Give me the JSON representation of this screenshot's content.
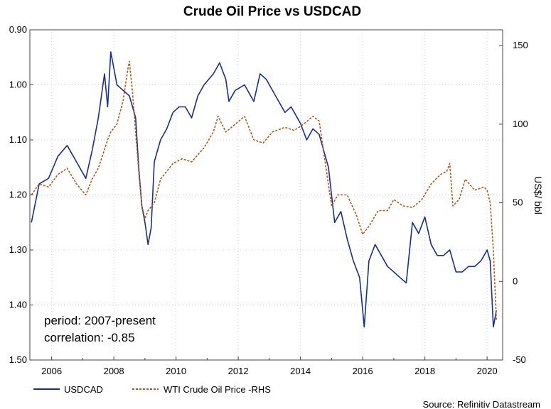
{
  "chart_data": {
    "type": "line",
    "title": "Crude Oil Price vs USDCAD",
    "x_ticks": [
      "2006",
      "2008",
      "2010",
      "2012",
      "2014",
      "2016",
      "2018",
      "2020"
    ],
    "x_range": [
      2005.3,
      2020.5
    ],
    "left_axis": {
      "inverted": true,
      "range": [
        0.9,
        1.5
      ],
      "ticks": [
        "0.90",
        "1.00",
        "1.10",
        "1.20",
        "1.30",
        "1.40",
        "1.50"
      ]
    },
    "right_axis": {
      "label": "US$/ bbl",
      "range": [
        -50,
        160
      ],
      "ticks": [
        "150",
        "100",
        "50",
        "0",
        "-50"
      ]
    },
    "grid": true,
    "colors": {
      "usdcad": "#1a2e8c",
      "wti": "#b2581d"
    },
    "annotation": [
      "period: 2007-present",
      "correlation: -0.85"
    ],
    "legend": {
      "usdcad": "USDCAD",
      "wti": "WTI Crude Oil Price -RHS",
      "position": "bottom-left"
    },
    "source": "Source: Refinitiv Datastream",
    "series": [
      {
        "name": "USDCAD",
        "axis": "left",
        "x": [
          2005.35,
          2005.6,
          2005.9,
          2006.2,
          2006.5,
          2006.8,
          2007.1,
          2007.3,
          2007.5,
          2007.7,
          2007.8,
          2007.9,
          2008.1,
          2008.3,
          2008.5,
          2008.7,
          2008.8,
          2008.9,
          2009.0,
          2009.1,
          2009.2,
          2009.3,
          2009.4,
          2009.5,
          2009.7,
          2009.9,
          2010.1,
          2010.3,
          2010.5,
          2010.7,
          2010.9,
          2011.2,
          2011.4,
          2011.6,
          2011.7,
          2011.9,
          2012.2,
          2012.5,
          2012.7,
          2012.9,
          2013.2,
          2013.5,
          2013.7,
          2014.0,
          2014.2,
          2014.4,
          2014.6,
          2014.7,
          2014.9,
          2015.1,
          2015.3,
          2015.5,
          2015.7,
          2015.9,
          2016.05,
          2016.2,
          2016.4,
          2016.6,
          2016.8,
          2017.0,
          2017.2,
          2017.4,
          2017.6,
          2017.8,
          2018.0,
          2018.2,
          2018.4,
          2018.6,
          2018.8,
          2019.0,
          2019.2,
          2019.4,
          2019.6,
          2019.8,
          2019.9,
          2020.0,
          2020.1,
          2020.2,
          2020.3
        ],
        "y": [
          1.25,
          1.18,
          1.17,
          1.13,
          1.11,
          1.14,
          1.17,
          1.12,
          1.06,
          0.98,
          1.04,
          0.94,
          1.0,
          1.01,
          1.02,
          1.06,
          1.15,
          1.22,
          1.25,
          1.29,
          1.26,
          1.14,
          1.12,
          1.1,
          1.08,
          1.05,
          1.04,
          1.04,
          1.06,
          1.02,
          1.0,
          0.98,
          0.96,
          0.99,
          1.03,
          1.01,
          1.0,
          1.03,
          0.98,
          0.99,
          1.02,
          1.05,
          1.04,
          1.07,
          1.1,
          1.08,
          1.09,
          1.11,
          1.15,
          1.25,
          1.23,
          1.28,
          1.32,
          1.35,
          1.44,
          1.32,
          1.29,
          1.31,
          1.33,
          1.34,
          1.35,
          1.36,
          1.25,
          1.27,
          1.24,
          1.29,
          1.31,
          1.31,
          1.3,
          1.34,
          1.34,
          1.33,
          1.33,
          1.32,
          1.31,
          1.3,
          1.32,
          1.44,
          1.41
        ]
      },
      {
        "name": "WTI Crude Oil Price -RHS",
        "axis": "right",
        "x": [
          2005.35,
          2005.6,
          2005.9,
          2006.2,
          2006.5,
          2006.8,
          2007.1,
          2007.3,
          2007.5,
          2007.8,
          2007.9,
          2008.1,
          2008.3,
          2008.45,
          2008.5,
          2008.6,
          2008.8,
          2008.9,
          2009.0,
          2009.1,
          2009.3,
          2009.5,
          2009.7,
          2009.9,
          2010.2,
          2010.5,
          2010.9,
          2011.2,
          2011.35,
          2011.6,
          2011.9,
          2012.2,
          2012.5,
          2012.8,
          2013.1,
          2013.5,
          2013.8,
          2014.1,
          2014.4,
          2014.6,
          2014.8,
          2015.0,
          2015.2,
          2015.5,
          2015.8,
          2016.0,
          2016.2,
          2016.5,
          2016.8,
          2017.0,
          2017.3,
          2017.6,
          2017.9,
          2018.2,
          2018.5,
          2018.7,
          2018.8,
          2018.9,
          2019.1,
          2019.3,
          2019.6,
          2019.9,
          2020.0,
          2020.1,
          2020.2,
          2020.3
        ],
        "y": [
          55,
          62,
          60,
          68,
          72,
          62,
          55,
          65,
          72,
          90,
          95,
          100,
          115,
          135,
          140,
          120,
          70,
          48,
          40,
          45,
          50,
          65,
          70,
          75,
          78,
          76,
          85,
          95,
          105,
          95,
          100,
          105,
          90,
          88,
          95,
          98,
          96,
          100,
          105,
          102,
          75,
          48,
          55,
          55,
          42,
          30,
          35,
          45,
          45,
          52,
          48,
          47,
          52,
          62,
          68,
          70,
          75,
          48,
          52,
          65,
          58,
          60,
          58,
          50,
          20,
          -25
        ]
      }
    ]
  }
}
